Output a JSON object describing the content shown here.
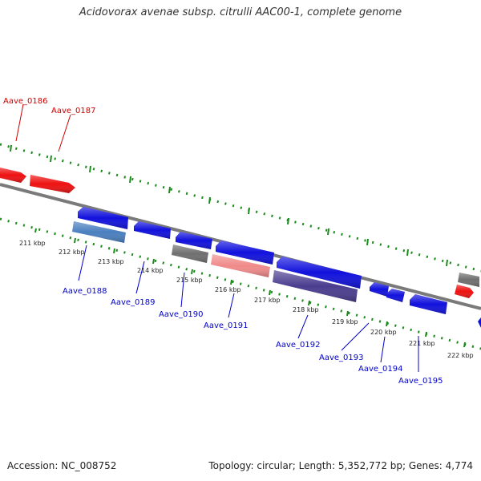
{
  "header": {
    "title": "Acidovorax avenae subsp. citrulli AAC00-1, complete genome"
  },
  "footer": {
    "accession": "Accession: NC_008752",
    "summary": "Topology: circular; Length: 5,352,772 bp; Genes: 4,774"
  },
  "colors": {
    "backbone": "#7a7a7a",
    "tick": "#1a8a1a",
    "forward_label": "#cc0000",
    "reverse_label": "#0000cc",
    "gene_red": "#ee1111",
    "gene_blue": "#1111dd",
    "gene_steel": "#4a7fbf",
    "gene_gray": "#6f6f6f",
    "gene_pink": "#f08a8a",
    "gene_purple": "#4a3d8f"
  },
  "scale": {
    "ticks": [
      {
        "label": "211 kbp"
      },
      {
        "label": "212 kbp"
      },
      {
        "label": "213 kbp"
      },
      {
        "label": "214 kbp"
      },
      {
        "label": "215 kbp"
      },
      {
        "label": "216 kbp"
      },
      {
        "label": "217 kbp"
      },
      {
        "label": "218 kbp"
      },
      {
        "label": "219 kbp"
      },
      {
        "label": "220 kbp"
      },
      {
        "label": "221 kbp"
      },
      {
        "label": "222 kbp"
      }
    ]
  },
  "gene_labels": {
    "forward": [
      {
        "label": "Aave_0186"
      },
      {
        "label": "Aave_0187"
      }
    ],
    "reverse": [
      {
        "label": "Aave_0188"
      },
      {
        "label": "Aave_0189"
      },
      {
        "label": "Aave_0190"
      },
      {
        "label": "Aave_0191"
      },
      {
        "label": "Aave_0192"
      },
      {
        "label": "Aave_0193"
      },
      {
        "label": "Aave_0194"
      },
      {
        "label": "Aave_0195"
      }
    ]
  }
}
